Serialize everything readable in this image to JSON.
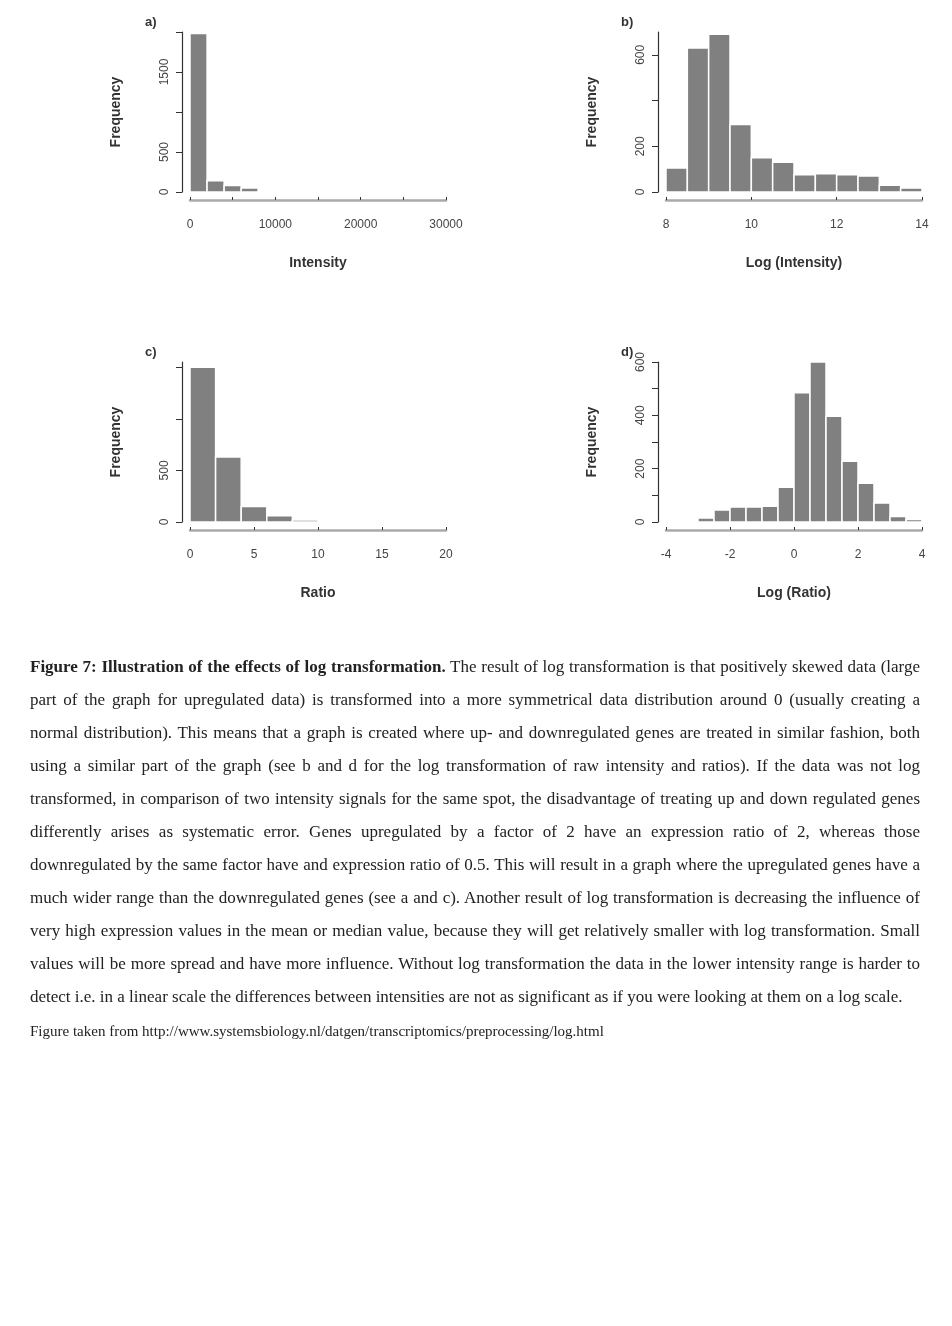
{
  "chart_data": [
    {
      "type": "histogram",
      "title": "a)",
      "xlabel": "Intensity",
      "ylabel": "Frequency",
      "color": "#808080",
      "bins": [
        0,
        2000,
        4000,
        6000,
        8000,
        10000
      ],
      "values": [
        1980,
        140,
        80,
        50,
        20
      ],
      "xlim": [
        0,
        30000
      ],
      "xticks": [
        0,
        {
          "value": 5000,
          "label": null
        },
        10000,
        {
          "value": 15000,
          "label": null
        },
        20000,
        {
          "value": 25000,
          "label": null
        },
        30000
      ],
      "ylim": [
        0,
        2000
      ],
      "yticks": [
        0,
        500,
        {
          "value": 1000,
          "label": null
        },
        1500,
        {
          "value": 2000,
          "label": null
        }
      ]
    },
    {
      "type": "histogram",
      "title": "b)",
      "xlabel": "Log (Intensity)",
      "ylabel": "Frequency",
      "color": "#808080",
      "bins": [
        8,
        8.5,
        9,
        9.5,
        10,
        10.5,
        11,
        11.5,
        12,
        12.5,
        13,
        13.5,
        14
      ],
      "values": [
        105,
        630,
        690,
        295,
        150,
        130,
        75,
        80,
        75,
        70,
        30,
        17
      ],
      "xlim": [
        8,
        14
      ],
      "xticks": [
        8,
        10,
        12,
        14
      ],
      "ylim": [
        0,
        700
      ],
      "yticks": [
        0,
        200,
        {
          "value": 400,
          "label": null
        },
        600
      ]
    },
    {
      "type": "histogram",
      "title": "c)",
      "xlabel": "Ratio",
      "ylabel": "Frequency",
      "color": "#808080",
      "bins": [
        0,
        2,
        4,
        6,
        8,
        10
      ],
      "values": [
        1500,
        630,
        150,
        60,
        20
      ],
      "xlim": [
        0,
        20
      ],
      "xticks": [
        0,
        5,
        10,
        15,
        20
      ],
      "ylim": [
        0,
        1550
      ],
      "yticks": [
        0,
        500,
        {
          "value": 1000,
          "label": null
        },
        {
          "value": 1500,
          "label": null
        }
      ]
    },
    {
      "type": "histogram",
      "title": "d)",
      "xlabel": "Log (Ratio)",
      "ylabel": "Frequency",
      "color": "#808080",
      "bins": [
        -3,
        -2.5,
        -2,
        -1.5,
        -1,
        -0.5,
        0,
        0.5,
        1,
        1.5,
        2,
        2.5,
        3,
        3.5,
        4
      ],
      "values": [
        15,
        45,
        56,
        56,
        59,
        130,
        485,
        600,
        397,
        228,
        145,
        71,
        21,
        9
      ],
      "xlim": [
        -4,
        4
      ],
      "xticks": [
        -4,
        -2,
        0,
        2,
        4
      ],
      "ylim": [
        0,
        600
      ],
      "yticks": [
        0,
        {
          "value": 100,
          "label": null
        },
        200,
        {
          "value": 300,
          "label": null
        },
        400,
        {
          "value": 500,
          "label": null
        },
        600
      ],
      "annotations": [
        "Figure 7: Illustration of the effects of log transformation.",
        "The result of log transformation is that positively skewed data (large part of the graph for upregulated data) is transformed into a more symmetrical data distribution around 0 (usually creating a normal distribution). This means that a graph is created where up- and downregulated genes are treated in similar fashion, both using a similar part of the graph (see b and d for the log transformation of raw intensity and ratios). If the data was not log transformed, in comparison of two intensity signals for the same spot, the disadvantage of treating up and down regulated genes differently arises as systematic error. Genes upregulated by a factor of 2 have an expression ratio of 2, whereas those downregulated by the same factor have and expression ratio of 0.5. This will result in a graph where the upregulated genes have a much wider range than the downregulated genes (see a and c). Another result of log transformation is decreasing the influence of very high expression values in the mean or median value, because they will get relatively smaller with log transformation. Small values will be more spread and have more influence. Without log transformation the data in the lower intensity range is harder to detect i.e. in a linear scale the differences between intensities are not as significant as if you were looking at them on a log scale.",
        "Figure taken from http://www.systemsbiology.nl/datgen/transcriptomics/preprocessing/log.html"
      ]
    }
  ]
}
